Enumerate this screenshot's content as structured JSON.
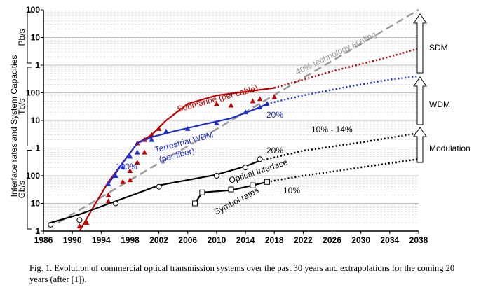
{
  "chart_data": {
    "type": "line",
    "title": "",
    "xlabel": "",
    "ylabel": "Interface rates and System Capacities",
    "x_ticks": [
      "1986",
      "1990",
      "1994",
      "1998",
      "2002",
      "2006",
      "2010",
      "2014",
      "2018",
      "2022",
      "2026",
      "2030",
      "2034",
      "2038"
    ],
    "xlim": [
      1986,
      2038
    ],
    "yscale": "log",
    "ylim_gbps": [
      1,
      100000000
    ],
    "y_ticks": [
      {
        "label": "1",
        "gbps": 1
      },
      {
        "label": "10",
        "gbps": 10
      },
      {
        "label": "100",
        "gbps": 100
      },
      {
        "label": "1",
        "gbps": 1000
      },
      {
        "label": "10",
        "gbps": 10000
      },
      {
        "label": "100",
        "gbps": 100000
      },
      {
        "label": "1",
        "gbps": 1000000
      },
      {
        "label": "10",
        "gbps": 10000000
      },
      {
        "label": "100",
        "gbps": 100000000
      }
    ],
    "unit_bands": [
      {
        "label": "Gb/s",
        "from": 1,
        "to": 1000
      },
      {
        "label": "Tb/s",
        "from": 1000,
        "to": 1000000
      },
      {
        "label": "Pb/s",
        "from": 1000000,
        "to": 100000000
      }
    ],
    "grid": true,
    "series": [
      {
        "name": "Submarine (per cable)",
        "color": "#c00000",
        "marker": "triangle",
        "line": [
          [
            1991,
            1
          ],
          [
            1993,
            8
          ],
          [
            1995,
            60
          ],
          [
            1997,
            300
          ],
          [
            1999,
            1500
          ],
          [
            2001,
            3000
          ],
          [
            2003,
            10000
          ],
          [
            2006,
            40000
          ],
          [
            2010,
            80000
          ],
          [
            2014,
            110000
          ],
          [
            2018,
            150000
          ]
        ],
        "extrapolation": [
          [
            2018,
            150000
          ],
          [
            2022,
            300000
          ],
          [
            2026,
            600000
          ],
          [
            2030,
            1100000
          ],
          [
            2034,
            2000000
          ],
          [
            2038,
            4000000
          ]
        ],
        "points": [
          [
            1991,
            1.5
          ],
          [
            1992,
            2
          ],
          [
            1995,
            12
          ],
          [
            1995,
            20
          ],
          [
            1997,
            60
          ],
          [
            1998,
            70
          ],
          [
            1998,
            150
          ],
          [
            1999,
            300
          ],
          [
            1999,
            1500
          ],
          [
            2000,
            700
          ],
          [
            2000,
            2000
          ],
          [
            2001,
            3000
          ],
          [
            2002,
            5000
          ],
          [
            2010,
            40000
          ],
          [
            2012,
            35000
          ],
          [
            2015,
            50000
          ],
          [
            2016,
            60000
          ],
          [
            2018,
            70000
          ]
        ]
      },
      {
        "name": "Terrestrial WDM (per fiber)",
        "color": "#1f2fcc",
        "marker": "triangle",
        "line": [
          [
            1995,
            50
          ],
          [
            1997,
            300
          ],
          [
            1999,
            1500
          ],
          [
            2001,
            2500
          ],
          [
            2004,
            4000
          ],
          [
            2008,
            7000
          ],
          [
            2012,
            12000
          ],
          [
            2016,
            30000
          ],
          [
            2017,
            40000
          ]
        ],
        "extrapolation": [
          [
            2017,
            40000
          ],
          [
            2022,
            80000
          ],
          [
            2026,
            130000
          ],
          [
            2030,
            200000
          ],
          [
            2034,
            300000
          ],
          [
            2038,
            400000
          ]
        ],
        "points": [
          [
            1995,
            50
          ],
          [
            1996,
            100
          ],
          [
            1997,
            200
          ],
          [
            1998,
            500
          ],
          [
            1999,
            700
          ],
          [
            2001,
            2000
          ],
          [
            2003,
            4000
          ],
          [
            2006,
            5000
          ],
          [
            2010,
            8000
          ],
          [
            2014,
            20000
          ],
          [
            2016,
            30000
          ],
          [
            2017,
            40000
          ]
        ]
      },
      {
        "name": "Optical Interface",
        "color": "#000000",
        "marker": "circle",
        "line": [
          [
            1987,
            2
          ],
          [
            1991,
            4
          ],
          [
            1996,
            12
          ],
          [
            2002,
            45
          ],
          [
            2010,
            110
          ],
          [
            2014,
            220
          ],
          [
            2016,
            350
          ]
        ],
        "extrapolation": [
          [
            2016,
            350
          ],
          [
            2022,
            800
          ],
          [
            2030,
            1600
          ],
          [
            2038,
            3500
          ]
        ],
        "points": [
          [
            1987,
            1.7
          ],
          [
            1991,
            2.5
          ],
          [
            1996,
            10
          ],
          [
            2002,
            40
          ],
          [
            2010,
            100
          ],
          [
            2014,
            200
          ],
          [
            2016,
            400
          ]
        ]
      },
      {
        "name": "Symbol rates",
        "color": "#000000",
        "marker": "square",
        "line": [
          [
            2007,
            10
          ],
          [
            2008,
            25
          ],
          [
            2012,
            30
          ],
          [
            2015,
            45
          ],
          [
            2017,
            60
          ]
        ],
        "extrapolation": [
          [
            2017,
            60
          ],
          [
            2022,
            100
          ],
          [
            2030,
            200
          ],
          [
            2038,
            400
          ]
        ],
        "points": [
          [
            2007,
            10
          ],
          [
            2008,
            25
          ],
          [
            2012,
            32
          ],
          [
            2015,
            45
          ],
          [
            2017,
            60
          ]
        ]
      }
    ],
    "trend_line": {
      "label": "40% technology scaling",
      "from": [
        1988,
        2
      ],
      "to": [
        2038,
        100000000
      ]
    },
    "annotations": [
      {
        "text": "Submarine (per cable)",
        "color": "#c00000"
      },
      {
        "text": "Terrestrial WDM",
        "color": "#1f2fcc"
      },
      {
        "text": "(per fiber)",
        "color": "#1f2fcc"
      },
      {
        "text": "Optical Interface",
        "color": "#000000"
      },
      {
        "text": "Symbol rates",
        "color": "#000000"
      },
      {
        "text": "40% technology scaling",
        "color": "#999999"
      },
      {
        "text": "100%",
        "color": "#1f2fcc"
      },
      {
        "text": "20%",
        "color": "#1f2fcc"
      },
      {
        "text": "10% - 14%",
        "color": "#000000"
      },
      {
        "text": "20%",
        "color": "#000000"
      },
      {
        "text": "10%",
        "color": "#000000"
      }
    ],
    "side_arrows": [
      "SDM",
      "WDM",
      "Modulation"
    ]
  },
  "caption": "Fig. 1. Evolution of commercial optical transmission systems over the past 30 years and extrapolations for the coming 20 years (after [1])."
}
